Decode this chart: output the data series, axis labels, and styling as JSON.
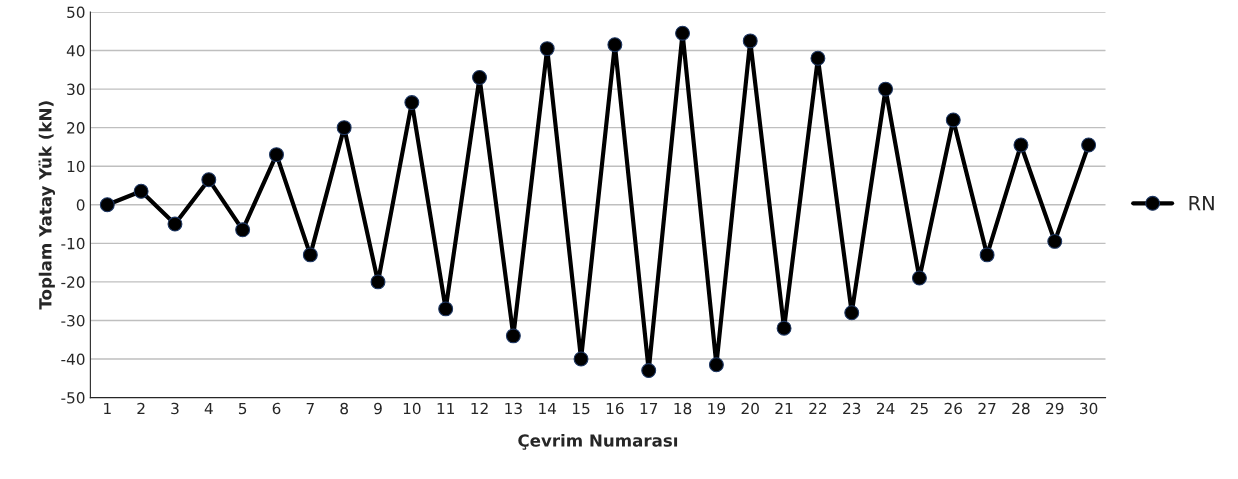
{
  "chart_data": {
    "type": "line",
    "xlabel": "Çevrim Numarası",
    "ylabel": "Toplam Yatay Yük (kN)",
    "categories": [
      "1",
      "2",
      "3",
      "4",
      "5",
      "6",
      "7",
      "8",
      "9",
      "10",
      "11",
      "12",
      "13",
      "14",
      "15",
      "16",
      "17",
      "18",
      "19",
      "20",
      "21",
      "22",
      "23",
      "24",
      "25",
      "26",
      "27",
      "28",
      "29",
      "30"
    ],
    "series": [
      {
        "name": "RN",
        "color": "#000000",
        "values": [
          0,
          3.5,
          -5,
          6.5,
          -6.5,
          13,
          -13,
          20,
          -20,
          26.5,
          -27,
          33,
          -34,
          40.5,
          -40,
          41.5,
          -43,
          44.5,
          -41.5,
          42.5,
          -32,
          38,
          -28,
          30,
          -19,
          22,
          -13,
          15.5,
          -9.5,
          15.5
        ]
      }
    ],
    "ylim": [
      -50,
      50
    ],
    "yticks": [
      -50,
      -40,
      -30,
      -20,
      -10,
      0,
      10,
      20,
      30,
      40,
      50
    ],
    "grid": "y",
    "legend": "right",
    "marker": "circle",
    "line_style": "solid"
  }
}
